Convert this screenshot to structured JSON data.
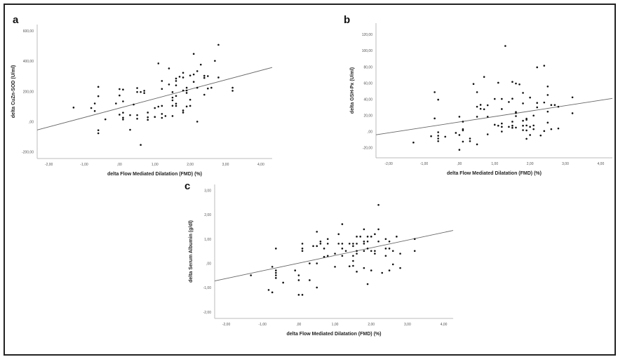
{
  "chart_data": [
    {
      "type": "scatter",
      "panel_label": "a",
      "xlabel": "delta Flow Mediated Dilatation (FMD) (%)",
      "ylabel": "delta CuZn-SOD (U/ml)",
      "xlim": [
        -2.33,
        4.32
      ],
      "ylim": [
        -244,
        642
      ],
      "xticks": [
        -2,
        -1,
        0,
        1,
        2,
        3,
        4
      ],
      "xtick_labels": [
        "-2,00",
        "-1,00",
        ",00",
        "1,00",
        "2,00",
        "3,00",
        "4,00"
      ],
      "yticks": [
        -200,
        0,
        200,
        400,
        600
      ],
      "ytick_labels": [
        "-200,00",
        ",00",
        "200,00",
        "400,00",
        "600,00"
      ],
      "grid": false,
      "fit_line": {
        "intercept": 89.6,
        "slope": 62.2
      },
      "points": [
        [
          -1.3,
          93
        ],
        [
          -0.8,
          90
        ],
        [
          -0.7,
          120
        ],
        [
          -0.7,
          70
        ],
        [
          -0.6,
          230
        ],
        [
          -0.6,
          168
        ],
        [
          -0.6,
          -57
        ],
        [
          -0.6,
          -77
        ],
        [
          -0.4,
          15
        ],
        [
          -0.1,
          120
        ],
        [
          0,
          215
        ],
        [
          0,
          173
        ],
        [
          0,
          46
        ],
        [
          0.1,
          212
        ],
        [
          0.1,
          134
        ],
        [
          0.1,
          59
        ],
        [
          0.1,
          26
        ],
        [
          0.1,
          14
        ],
        [
          0.3,
          43
        ],
        [
          0.3,
          -54
        ],
        [
          0.4,
          113
        ],
        [
          0.5,
          222
        ],
        [
          0.5,
          196
        ],
        [
          0.5,
          43
        ],
        [
          0.5,
          19
        ],
        [
          0.6,
          -154
        ],
        [
          0.6,
          196
        ],
        [
          0.7,
          204
        ],
        [
          0.7,
          189
        ],
        [
          0.8,
          60
        ],
        [
          0.8,
          29
        ],
        [
          0.8,
          12
        ],
        [
          1.0,
          90
        ],
        [
          1.0,
          31
        ],
        [
          1.1,
          99
        ],
        [
          1.1,
          385
        ],
        [
          1.2,
          269
        ],
        [
          1.2,
          216
        ],
        [
          1.2,
          104
        ],
        [
          1.2,
          51
        ],
        [
          1.2,
          25
        ],
        [
          1.3,
          37
        ],
        [
          1.4,
          352
        ],
        [
          1.4,
          246
        ],
        [
          1.5,
          195
        ],
        [
          1.5,
          159
        ],
        [
          1.5,
          141
        ],
        [
          1.5,
          105
        ],
        [
          1.5,
          37
        ],
        [
          1.6,
          285
        ],
        [
          1.6,
          269
        ],
        [
          1.6,
          240
        ],
        [
          1.6,
          170
        ],
        [
          1.6,
          119
        ],
        [
          1.6,
          104
        ],
        [
          1.7,
          297
        ],
        [
          1.8,
          323
        ],
        [
          1.8,
          292
        ],
        [
          1.8,
          206
        ],
        [
          1.8,
          74
        ],
        [
          1.8,
          60
        ],
        [
          1.9,
          224
        ],
        [
          1.9,
          206
        ],
        [
          1.9,
          190
        ],
        [
          1.9,
          100
        ],
        [
          2.0,
          305
        ],
        [
          2.0,
          145
        ],
        [
          2.0,
          104
        ],
        [
          2.1,
          448
        ],
        [
          2.1,
          312
        ],
        [
          2.1,
          263
        ],
        [
          2.2,
          334
        ],
        [
          2.2,
          224
        ],
        [
          2.2,
          0
        ],
        [
          2.3,
          377
        ],
        [
          2.4,
          303
        ],
        [
          2.4,
          289
        ],
        [
          2.4,
          178
        ],
        [
          2.5,
          301
        ],
        [
          2.5,
          219
        ],
        [
          2.6,
          224
        ],
        [
          2.7,
          402
        ],
        [
          2.8,
          508
        ],
        [
          2.8,
          292
        ],
        [
          3.2,
          224
        ],
        [
          3.2,
          204
        ]
      ]
    },
    {
      "type": "scatter",
      "panel_label": "b",
      "xlabel": "delta Flow Mediated Dilatation (FMD) (%)",
      "ylabel": "delta GSH-Px (U/ml)",
      "xlim": [
        -2.36,
        4.33
      ],
      "ylim": [
        -32.5,
        134
      ],
      "xticks": [
        -2,
        -1,
        0,
        1,
        2,
        3,
        4
      ],
      "xtick_labels": [
        "-2,00",
        "-1,00",
        ",00",
        "1,00",
        "2,00",
        "3,00",
        "4,00"
      ],
      "yticks": [
        -20,
        0,
        20,
        40,
        60,
        80,
        100,
        120
      ],
      "ytick_labels": [
        "-20,00",
        ",00",
        "20,00",
        "40,00",
        "60,00",
        "80,00",
        "100,00",
        "120,00"
      ],
      "grid": false,
      "fit_line": {
        "intercept": 11.8,
        "slope": 6.73
      },
      "points": [
        [
          -1.3,
          -13.6
        ],
        [
          -0.8,
          -5.8
        ],
        [
          -0.7,
          48.7
        ],
        [
          -0.7,
          16.2
        ],
        [
          -0.6,
          39.4
        ],
        [
          -0.6,
          -0.9
        ],
        [
          -0.6,
          -5.2
        ],
        [
          -0.6,
          -8.7
        ],
        [
          -0.6,
          -11.9
        ],
        [
          -0.4,
          -6.4
        ],
        [
          -0.1,
          -1.7
        ],
        [
          0,
          18.3
        ],
        [
          0,
          -4.3
        ],
        [
          0,
          -22.6
        ],
        [
          0.1,
          12.2
        ],
        [
          0.1,
          2.9
        ],
        [
          0.1,
          1.4
        ],
        [
          0.1,
          -12.5
        ],
        [
          0.3,
          -8.7
        ],
        [
          0.3,
          -11.9
        ],
        [
          0.4,
          58.8
        ],
        [
          0.5,
          48.7
        ],
        [
          0.5,
          30.7
        ],
        [
          0.5,
          18.3
        ],
        [
          0.5,
          -15.9
        ],
        [
          0.6,
          33.0
        ],
        [
          0.6,
          28.1
        ],
        [
          0.7,
          27.5
        ],
        [
          0.7,
          67.5
        ],
        [
          0.8,
          32.5
        ],
        [
          0.8,
          18.3
        ],
        [
          0.8,
          -3.5
        ],
        [
          1.0,
          40.3
        ],
        [
          1.0,
          8.4
        ],
        [
          1.1,
          7.2
        ],
        [
          1.1,
          60.3
        ],
        [
          1.2,
          40.3
        ],
        [
          1.2,
          27.8
        ],
        [
          1.2,
          9.9
        ],
        [
          1.2,
          5.8
        ],
        [
          1.2,
          0
        ],
        [
          1.3,
          105.8
        ],
        [
          1.4,
          36.5
        ],
        [
          1.4,
          5.8
        ],
        [
          1.5,
          61.4
        ],
        [
          1.5,
          40.6
        ],
        [
          1.5,
          12.2
        ],
        [
          1.5,
          7.2
        ],
        [
          1.5,
          4.6
        ],
        [
          1.6,
          59.4
        ],
        [
          1.6,
          24.1
        ],
        [
          1.6,
          22.9
        ],
        [
          1.6,
          19.1
        ],
        [
          1.6,
          4.9
        ],
        [
          1.7,
          58.3
        ],
        [
          1.8,
          47.8
        ],
        [
          1.8,
          34.8
        ],
        [
          1.8,
          13.3
        ],
        [
          1.8,
          7.2
        ],
        [
          1.8,
          1.7
        ],
        [
          1.9,
          15.9
        ],
        [
          1.9,
          14.5
        ],
        [
          1.9,
          7.5
        ],
        [
          1.9,
          1.4
        ],
        [
          1.9,
          -9.0
        ],
        [
          2.0,
          42
        ],
        [
          2.0,
          5.8
        ],
        [
          2.0,
          -4.3
        ],
        [
          2.1,
          19.7
        ],
        [
          2.1,
          7.5
        ],
        [
          2.1,
          2.9
        ],
        [
          2.2,
          79.4
        ],
        [
          2.2,
          35.4
        ],
        [
          2.2,
          29.9
        ],
        [
          2.3,
          -4.9
        ],
        [
          2.4,
          81.4
        ],
        [
          2.4,
          35.9
        ],
        [
          2.4,
          0.6
        ],
        [
          2.5,
          55.7
        ],
        [
          2.5,
          45.2
        ],
        [
          2.5,
          24.6
        ],
        [
          2.5,
          11
        ],
        [
          2.6,
          32.8
        ],
        [
          2.6,
          2.9
        ],
        [
          2.7,
          32.8
        ],
        [
          2.8,
          30.7
        ],
        [
          2.8,
          3.8
        ],
        [
          3.2,
          42.3
        ],
        [
          3.2,
          22.6
        ]
      ]
    },
    {
      "type": "scatter",
      "panel_label": "c",
      "xlabel": "delta Flow Mediated Dilatation (FMD) (%)",
      "ylabel": "delta Serum Albumin (g/dl)",
      "xlim": [
        -2.32,
        4.26
      ],
      "ylim": [
        -2.26,
        3.24
      ],
      "xticks": [
        -2,
        -1,
        0,
        1,
        2,
        3,
        4
      ],
      "xtick_labels": [
        "-2,00",
        "-1,00",
        ",00",
        "1,00",
        "2,00",
        "3,00",
        "4,00"
      ],
      "yticks": [
        -2,
        -1,
        0,
        1,
        2,
        3
      ],
      "ytick_labels": [
        "-2,00",
        "-1,00",
        ",00",
        "1,00",
        "2,00",
        "3,00"
      ],
      "grid": false,
      "fit_line": {
        "intercept": 0.01,
        "slope": 0.315
      },
      "points": [
        [
          -1.32,
          -0.49
        ],
        [
          -0.83,
          -1.09
        ],
        [
          -0.73,
          -0.14
        ],
        [
          -0.73,
          -1.19
        ],
        [
          -0.63,
          0.61
        ],
        [
          -0.63,
          -0.29
        ],
        [
          -0.63,
          -0.39
        ],
        [
          -0.63,
          -0.49
        ],
        [
          -0.63,
          -0.6
        ],
        [
          -0.43,
          -0.79
        ],
        [
          -0.1,
          -0.29
        ],
        [
          0,
          -0.49
        ],
        [
          0,
          -0.69
        ],
        [
          0,
          -1.29
        ],
        [
          0.1,
          0.81
        ],
        [
          0.1,
          0.61
        ],
        [
          0.1,
          0.51
        ],
        [
          0.1,
          -1.29
        ],
        [
          0.3,
          0
        ],
        [
          0.3,
          -0.69
        ],
        [
          0.4,
          0.71
        ],
        [
          0.5,
          1.3
        ],
        [
          0.5,
          0.71
        ],
        [
          0.5,
          0
        ],
        [
          0.5,
          -0.99
        ],
        [
          0.6,
          0.9
        ],
        [
          0.6,
          0.81
        ],
        [
          0.7,
          0.61
        ],
        [
          0.7,
          0.27
        ],
        [
          0.8,
          1.0
        ],
        [
          0.8,
          0.81
        ],
        [
          0.8,
          0.31
        ],
        [
          1.0,
          0.4
        ],
        [
          1.0,
          -0.14
        ],
        [
          1.1,
          1.2
        ],
        [
          1.1,
          0.81
        ],
        [
          1.2,
          1.61
        ],
        [
          1.2,
          0.81
        ],
        [
          1.2,
          0.61
        ],
        [
          1.2,
          0.31
        ],
        [
          1.3,
          0.51
        ],
        [
          1.4,
          0.81
        ],
        [
          1.4,
          -0.12
        ],
        [
          1.5,
          0.81
        ],
        [
          1.5,
          0.71
        ],
        [
          1.5,
          0.31
        ],
        [
          1.5,
          0.1
        ],
        [
          1.5,
          -0.1
        ],
        [
          1.6,
          1.1
        ],
        [
          1.6,
          0.81
        ],
        [
          1.6,
          0.51
        ],
        [
          1.6,
          0.4
        ],
        [
          1.6,
          -0.34
        ],
        [
          1.7,
          1.1
        ],
        [
          1.8,
          1.4
        ],
        [
          1.8,
          0.9
        ],
        [
          1.8,
          0.81
        ],
        [
          1.8,
          0.51
        ],
        [
          1.8,
          -0.19
        ],
        [
          1.9,
          1.1
        ],
        [
          1.9,
          0.9
        ],
        [
          1.9,
          0.61
        ],
        [
          1.9,
          -0.85
        ],
        [
          2.0,
          1.1
        ],
        [
          2.0,
          0.51
        ],
        [
          2.0,
          -0.29
        ],
        [
          2.1,
          1.2
        ],
        [
          2.1,
          0.51
        ],
        [
          2.1,
          0.4
        ],
        [
          2.2,
          2.4
        ],
        [
          2.2,
          1.4
        ],
        [
          2.2,
          0.9
        ],
        [
          2.3,
          -0.39
        ],
        [
          2.4,
          1.0
        ],
        [
          2.4,
          0.61
        ],
        [
          2.4,
          0.31
        ],
        [
          2.5,
          0.9
        ],
        [
          2.5,
          0.61
        ],
        [
          2.5,
          -0.29
        ],
        [
          2.6,
          0.51
        ],
        [
          2.6,
          -0.04
        ],
        [
          2.7,
          1.1
        ],
        [
          2.8,
          0.4
        ],
        [
          2.8,
          -0.19
        ],
        [
          3.2,
          1.0
        ],
        [
          3.2,
          0.51
        ]
      ]
    }
  ],
  "colors": {
    "points": "#111111",
    "fit_line": "#666666",
    "axes": "#bbbbbb",
    "frame": "#222222"
  }
}
